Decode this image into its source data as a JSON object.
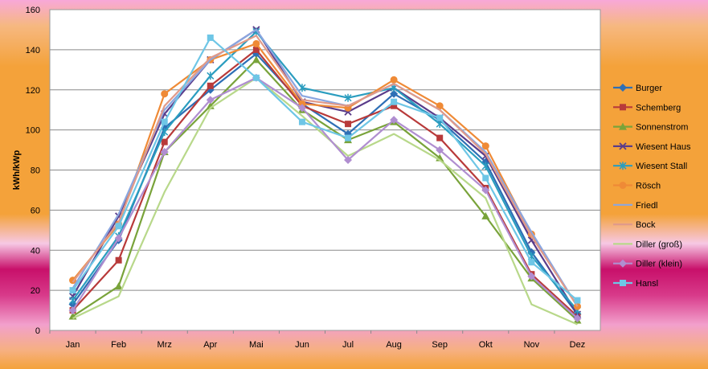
{
  "chart_data": {
    "type": "line",
    "title": "",
    "xlabel": "",
    "ylabel": "kWh/kWp",
    "ylim": [
      0,
      160
    ],
    "yticks": [
      0,
      20,
      40,
      60,
      80,
      100,
      120,
      140,
      160
    ],
    "grid": true,
    "legend_position": "right",
    "categories": [
      "Jan",
      "Feb",
      "Mrz",
      "Apr",
      "Mai",
      "Jun",
      "Jul",
      "Aug",
      "Sep",
      "Okt",
      "Nov",
      "Dez"
    ],
    "series": [
      {
        "name": "Burger",
        "color": "#2e6fb5",
        "marker": "diamond",
        "values": [
          13,
          45,
          101,
          120,
          138,
          113,
          98,
          118,
          105,
          84,
          39,
          8
        ]
      },
      {
        "name": "Schemberg",
        "color": "#b83a3a",
        "marker": "square",
        "values": [
          10,
          35,
          94,
          122,
          140,
          112,
          103,
          112,
          96,
          71,
          28,
          7
        ]
      },
      {
        "name": "Sonnenstrom",
        "color": "#79a33a",
        "marker": "triangle",
        "values": [
          7,
          22,
          89,
          112,
          135,
          110,
          95,
          104,
          86,
          57,
          26,
          5
        ]
      },
      {
        "name": "Wiesent Haus",
        "color": "#5a3c8a",
        "marker": "x",
        "values": [
          17,
          57,
          108,
          135,
          150,
          114,
          109,
          121,
          106,
          87,
          45,
          8
        ]
      },
      {
        "name": "Wiesent Stall",
        "color": "#2a9dbf",
        "marker": "star",
        "values": [
          15,
          47,
          99,
          127,
          149,
          121,
          116,
          121,
          103,
          82,
          37,
          10
        ]
      },
      {
        "name": "Rösch",
        "color": "#ef8a36",
        "marker": "circle",
        "values": [
          25,
          53,
          118,
          135,
          143,
          113,
          111,
          125,
          112,
          92,
          48,
          12
        ]
      },
      {
        "name": "Friedl",
        "color": "#8aa6e0",
        "marker": "none",
        "values": [
          21,
          58,
          110,
          135,
          150,
          117,
          112,
          123,
          110,
          89,
          49,
          12
        ]
      },
      {
        "name": "Bock",
        "color": "#e09a8a",
        "marker": "none",
        "values": [
          24,
          54,
          112,
          136,
          147,
          115,
          112,
          123,
          110,
          88,
          47,
          12
        ]
      },
      {
        "name": "Diller (groß)",
        "color": "#b8d88a",
        "marker": "none",
        "values": [
          6,
          17,
          69,
          111,
          126,
          107,
          87,
          98,
          85,
          66,
          13,
          3
        ]
      },
      {
        "name": "Diller (klein)",
        "color": "#b08ed0",
        "marker": "diamond",
        "values": [
          10,
          46,
          89,
          115,
          126,
          111,
          85,
          105,
          90,
          70,
          27,
          6
        ]
      },
      {
        "name": "Hansl",
        "color": "#6ec6e6",
        "marker": "square",
        "values": [
          20,
          52,
          104,
          146,
          126,
          104,
          96,
          114,
          106,
          76,
          34,
          15
        ]
      }
    ]
  }
}
